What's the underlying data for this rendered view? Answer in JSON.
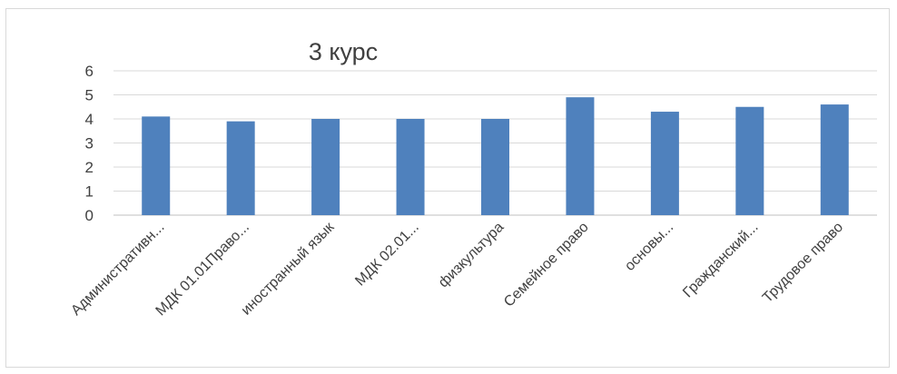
{
  "chart_data": {
    "type": "bar",
    "title": "3 курс",
    "xlabel": "",
    "ylabel": "",
    "ylim": [
      0,
      6
    ],
    "yticks": [
      "0",
      "1",
      "2",
      "3",
      "4",
      "5",
      "6"
    ],
    "grid": true,
    "legend": "none",
    "bar_color": "#4f81bd",
    "categories": [
      "Административн...",
      "МДК 01.01Право...",
      "иностранный язык",
      "МДК 02.01...",
      "физкультура",
      "Семейное право",
      "основы...",
      "Гражданский...",
      "Трудовое право"
    ],
    "values": [
      4.1,
      3.9,
      4.0,
      4.0,
      4.0,
      4.9,
      4.3,
      4.5,
      4.6
    ]
  }
}
